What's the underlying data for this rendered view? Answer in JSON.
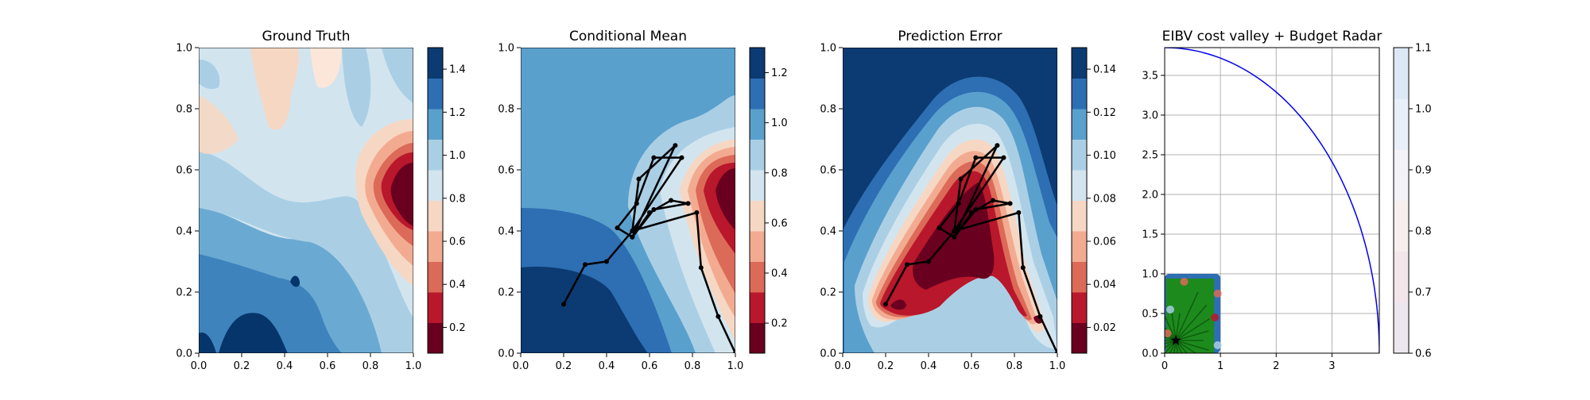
{
  "chart_data": [
    {
      "type": "heatmap",
      "title": "Ground Truth",
      "xlim": [
        0,
        1
      ],
      "ylim": [
        0,
        1
      ],
      "xticks": [
        "0.0",
        "0.2",
        "0.4",
        "0.6",
        "0.8",
        "1.0"
      ],
      "yticks": [
        "0.0",
        "0.2",
        "0.4",
        "0.6",
        "0.8",
        "1.0"
      ],
      "colormap": "RdBu",
      "colorbar": {
        "range": [
          0.08,
          1.5
        ],
        "ticks": [
          "0.2",
          "0.4",
          "0.6",
          "0.8",
          "1.0",
          "1.2",
          "1.4"
        ],
        "tick_values": [
          0.2,
          0.4,
          0.6,
          0.8,
          1.0,
          1.2,
          1.4
        ]
      }
    },
    {
      "type": "heatmap",
      "title": "Conditional Mean",
      "xlim": [
        0,
        1
      ],
      "ylim": [
        0,
        1
      ],
      "xticks": [
        "0.0",
        "0.2",
        "0.4",
        "0.6",
        "0.8",
        "1.0"
      ],
      "yticks": [
        "0.0",
        "0.2",
        "0.4",
        "0.6",
        "0.8",
        "1.0"
      ],
      "colormap": "RdBu",
      "colorbar": {
        "range": [
          0.08,
          1.3
        ],
        "ticks": [
          "0.2",
          "0.4",
          "0.6",
          "0.8",
          "1.0",
          "1.2"
        ],
        "tick_values": [
          0.2,
          0.4,
          0.6,
          0.8,
          1.0,
          1.2
        ]
      },
      "path": [
        [
          0.2,
          0.16
        ],
        [
          0.3,
          0.29
        ],
        [
          0.4,
          0.3
        ],
        [
          0.52,
          0.4
        ],
        [
          0.55,
          0.57
        ],
        [
          0.72,
          0.68
        ],
        [
          0.52,
          0.38
        ],
        [
          0.6,
          0.46
        ],
        [
          0.7,
          0.5
        ],
        [
          0.78,
          0.49
        ],
        [
          0.62,
          0.47
        ],
        [
          0.52,
          0.38
        ],
        [
          0.45,
          0.41
        ],
        [
          0.54,
          0.49
        ],
        [
          0.62,
          0.64
        ],
        [
          0.75,
          0.64
        ],
        [
          0.52,
          0.4
        ],
        [
          0.82,
          0.46
        ],
        [
          0.84,
          0.28
        ],
        [
          0.92,
          0.12
        ],
        [
          1.0,
          0.0
        ]
      ]
    },
    {
      "type": "heatmap",
      "title": "Prediction Error",
      "xlim": [
        0,
        1
      ],
      "ylim": [
        0,
        1
      ],
      "xticks": [
        "0.0",
        "0.2",
        "0.4",
        "0.6",
        "0.8",
        "1.0"
      ],
      "yticks": [
        "0.0",
        "0.2",
        "0.4",
        "0.6",
        "0.8",
        "1.0"
      ],
      "colormap": "RdBu",
      "colorbar": {
        "range": [
          0.008,
          0.15
        ],
        "ticks": [
          "0.02",
          "0.04",
          "0.06",
          "0.08",
          "0.10",
          "0.12",
          "0.14"
        ],
        "tick_values": [
          0.02,
          0.04,
          0.06,
          0.08,
          0.1,
          0.12,
          0.14
        ]
      },
      "path": [
        [
          0.2,
          0.16
        ],
        [
          0.3,
          0.29
        ],
        [
          0.4,
          0.3
        ],
        [
          0.52,
          0.4
        ],
        [
          0.55,
          0.57
        ],
        [
          0.72,
          0.68
        ],
        [
          0.52,
          0.38
        ],
        [
          0.6,
          0.46
        ],
        [
          0.7,
          0.5
        ],
        [
          0.78,
          0.49
        ],
        [
          0.62,
          0.47
        ],
        [
          0.52,
          0.38
        ],
        [
          0.45,
          0.41
        ],
        [
          0.54,
          0.49
        ],
        [
          0.62,
          0.64
        ],
        [
          0.75,
          0.64
        ],
        [
          0.52,
          0.4
        ],
        [
          0.82,
          0.46
        ],
        [
          0.84,
          0.28
        ],
        [
          0.92,
          0.12
        ],
        [
          1.0,
          0.0
        ]
      ]
    },
    {
      "type": "line",
      "title": "EIBV cost valley + Budget Radar",
      "xlim": [
        0,
        3.85
      ],
      "ylim": [
        0,
        3.85
      ],
      "xticks": [
        "0",
        "1",
        "2",
        "3"
      ],
      "xtick_values": [
        0,
        1,
        2,
        3
      ],
      "yticks": [
        "0.0",
        "0.5",
        "1.0",
        "1.5",
        "2.0",
        "2.5",
        "3.0",
        "3.5"
      ],
      "ytick_values": [
        0,
        0.5,
        1.0,
        1.5,
        2.0,
        2.5,
        3.0,
        3.5
      ],
      "grid": true,
      "budget_radius": 3.85,
      "inset_extent": [
        0,
        1,
        0,
        1
      ],
      "origin_marker": [
        0.2,
        0.16
      ],
      "colorbar": {
        "range": [
          0.6,
          1.1
        ],
        "ticks": [
          "0.6",
          "0.7",
          "0.8",
          "0.9",
          "1.0",
          "1.1"
        ],
        "tick_values": [
          0.6,
          0.7,
          0.8,
          0.9,
          1.0,
          1.1
        ]
      }
    }
  ]
}
